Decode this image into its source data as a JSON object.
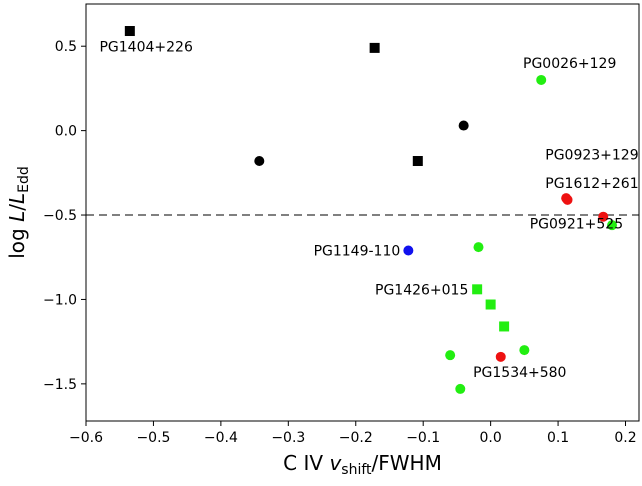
{
  "chart_data": {
    "type": "scatter",
    "title": "",
    "xlabel": {
      "main": "C IV ",
      "var": "v",
      "sub": "shift",
      "tail": "/FWHM"
    },
    "ylabel": {
      "main": "log ",
      "var": "L",
      "sep": "/",
      "var2": "L",
      "sub": "Edd"
    },
    "xlim": [
      -0.6,
      0.22
    ],
    "ylim": [
      -1.72,
      0.75
    ],
    "xticks": [
      -0.6,
      -0.5,
      -0.4,
      -0.3,
      -0.2,
      -0.1,
      0.0,
      0.1,
      0.2
    ],
    "xtick_labels": [
      "−0.6",
      "−0.5",
      "−0.4",
      "−0.3",
      "−0.2",
      "−0.1",
      "0.0",
      "0.1",
      "0.2"
    ],
    "yticks": [
      0.5,
      0.0,
      -0.5,
      -1.0,
      -1.5
    ],
    "ytick_labels": [
      "0.5",
      "0.0",
      "−0.5",
      "−1.0",
      "−1.5"
    ],
    "grid": false,
    "reference_line": {
      "y": -0.5,
      "style": "dashed",
      "color": "#808080"
    },
    "colors": {
      "black": "#000000",
      "green": "#22ee11",
      "red": "#ee1111",
      "blue": "#1111ee",
      "ref_line": "#808080"
    },
    "points": [
      {
        "x": -0.535,
        "y": 0.59,
        "marker": "square",
        "color": "black"
      },
      {
        "x": -0.172,
        "y": 0.49,
        "marker": "square",
        "color": "black"
      },
      {
        "x": -0.108,
        "y": -0.18,
        "marker": "square",
        "color": "black"
      },
      {
        "x": -0.343,
        "y": -0.18,
        "marker": "circle",
        "color": "black"
      },
      {
        "x": -0.04,
        "y": 0.03,
        "marker": "circle",
        "color": "black"
      },
      {
        "x": 0.075,
        "y": 0.3,
        "marker": "circle",
        "color": "green"
      },
      {
        "x": 0.112,
        "y": -0.4,
        "marker": "circle",
        "color": "red"
      },
      {
        "x": 0.114,
        "y": -0.41,
        "marker": "circle",
        "color": "red"
      },
      {
        "x": 0.167,
        "y": -0.51,
        "marker": "circle",
        "color": "red"
      },
      {
        "x": 0.18,
        "y": -0.56,
        "marker": "circle",
        "color": "green"
      },
      {
        "x": -0.122,
        "y": -0.71,
        "marker": "circle",
        "color": "blue"
      },
      {
        "x": -0.018,
        "y": -0.69,
        "marker": "circle",
        "color": "green"
      },
      {
        "x": -0.02,
        "y": -0.94,
        "marker": "square",
        "color": "green"
      },
      {
        "x": 0.0,
        "y": -1.03,
        "marker": "square",
        "color": "green"
      },
      {
        "x": 0.02,
        "y": -1.16,
        "marker": "square",
        "color": "green"
      },
      {
        "x": -0.06,
        "y": -1.33,
        "marker": "circle",
        "color": "green"
      },
      {
        "x": 0.015,
        "y": -1.34,
        "marker": "circle",
        "color": "red"
      },
      {
        "x": 0.05,
        "y": -1.3,
        "marker": "circle",
        "color": "green"
      },
      {
        "x": -0.045,
        "y": -1.53,
        "marker": "circle",
        "color": "green"
      }
    ],
    "annotations": [
      {
        "text": "PG1404+226",
        "x": -0.58,
        "y": 0.47,
        "anchor": "start"
      },
      {
        "text": "PG0026+129",
        "x": 0.048,
        "y": 0.37,
        "anchor": "start"
      },
      {
        "text": "PG0923+129",
        "x": 0.081,
        "y": -0.17,
        "anchor": "start"
      },
      {
        "text": "PG1612+261",
        "x": 0.081,
        "y": -0.34,
        "anchor": "start"
      },
      {
        "text": "PG0921+525",
        "x": 0.058,
        "y": -0.58,
        "anchor": "start"
      },
      {
        "text": "PG1149-110",
        "x": -0.134,
        "y": -0.74,
        "anchor": "end"
      },
      {
        "text": "PG1426+015",
        "x": -0.033,
        "y": -0.97,
        "anchor": "end"
      },
      {
        "text": "PG1534+580",
        "x": -0.026,
        "y": -1.46,
        "anchor": "start"
      }
    ]
  }
}
